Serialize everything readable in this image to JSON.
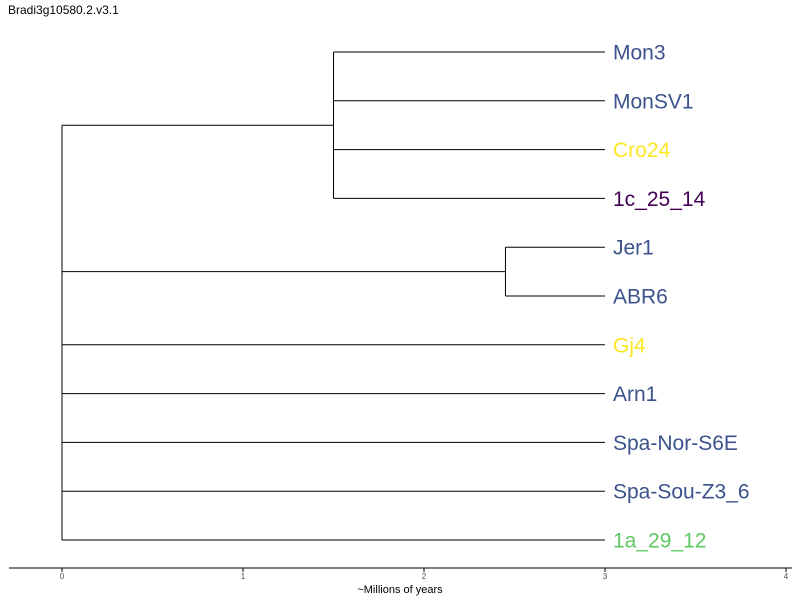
{
  "title": "Bradi3g10580.2.v3.1",
  "axis": {
    "label": "~Millions of years",
    "ticks": [
      0,
      1,
      2,
      3,
      4
    ]
  },
  "chart_data": {
    "type": "dendrogram",
    "xlim": [
      0,
      4
    ],
    "leaves": [
      {
        "name": "Mon3",
        "color": "#3b528b"
      },
      {
        "name": "MonSV1",
        "color": "#3b528b"
      },
      {
        "name": "Cro24",
        "color": "#fde725"
      },
      {
        "name": "1c_25_14",
        "color": "#440154"
      },
      {
        "name": "Jer1",
        "color": "#3b528b"
      },
      {
        "name": "ABR6",
        "color": "#3b528b"
      },
      {
        "name": "Gj4",
        "color": "#fde725"
      },
      {
        "name": "Arn1",
        "color": "#3b528b"
      },
      {
        "name": "Spa-Nor-S6E",
        "color": "#3b528b"
      },
      {
        "name": "Spa-Sou-Z3_6",
        "color": "#3b528b"
      },
      {
        "name": "1a_29_12",
        "color": "#5ec962"
      }
    ],
    "tree": {
      "depth": 0,
      "children": [
        {
          "depth": 1.5,
          "children": [
            {
              "leaf": 0,
              "depth": 3
            },
            {
              "leaf": 1,
              "depth": 3
            },
            {
              "leaf": 2,
              "depth": 3
            },
            {
              "leaf": 3,
              "depth": 3
            }
          ]
        },
        {
          "depth": 2.45,
          "children": [
            {
              "leaf": 4,
              "depth": 3
            },
            {
              "leaf": 5,
              "depth": 3
            }
          ]
        },
        {
          "leaf": 6,
          "depth": 3
        },
        {
          "leaf": 7,
          "depth": 3
        },
        {
          "leaf": 8,
          "depth": 3
        },
        {
          "leaf": 9,
          "depth": 3
        },
        {
          "leaf": 10,
          "depth": 3
        }
      ]
    }
  }
}
